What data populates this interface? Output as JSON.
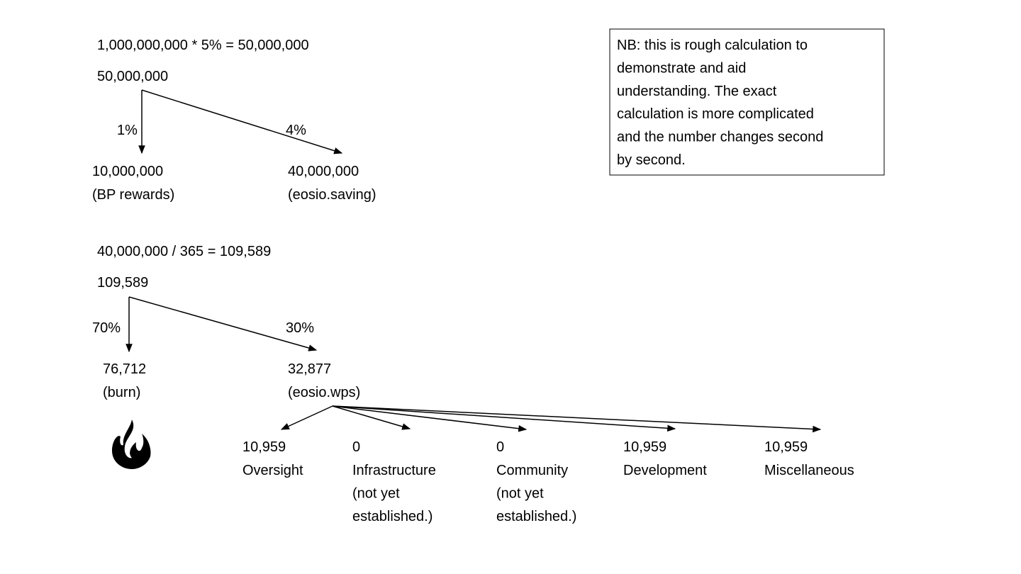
{
  "formula1": "1,000,000,000 * 5% = 50,000,000",
  "tree1": {
    "root": "50,000,000",
    "edges": [
      "1%",
      "4%"
    ],
    "children": [
      {
        "value": "10,000,000",
        "label": "(BP rewards)"
      },
      {
        "value": "40,000,000",
        "label": "(eosio.saving)"
      }
    ]
  },
  "formula2": "40,000,000 / 365 = 109,589",
  "tree2": {
    "root": "109,589",
    "edges": [
      "70%",
      "30%"
    ],
    "children": [
      {
        "value": "76,712",
        "label": "(burn)"
      },
      {
        "value": "32,877",
        "label": "(eosio.wps)"
      }
    ]
  },
  "wps_split": [
    {
      "value": "10,959",
      "label": [
        "Oversight"
      ]
    },
    {
      "value": "0",
      "label": [
        "Infrastructure",
        "(not yet",
        "established.)"
      ]
    },
    {
      "value": "0",
      "label": [
        "Community",
        "(not yet",
        "established.)"
      ]
    },
    {
      "value": "10,959",
      "label": [
        "Development"
      ]
    },
    {
      "value": "10,959",
      "label": [
        "Miscellaneous"
      ]
    }
  ],
  "note": [
    "NB: this is rough calculation to",
    "demonstrate and aid",
    "understanding. The exact",
    "calculation is more complicated",
    "and the number changes second",
    "by second."
  ]
}
